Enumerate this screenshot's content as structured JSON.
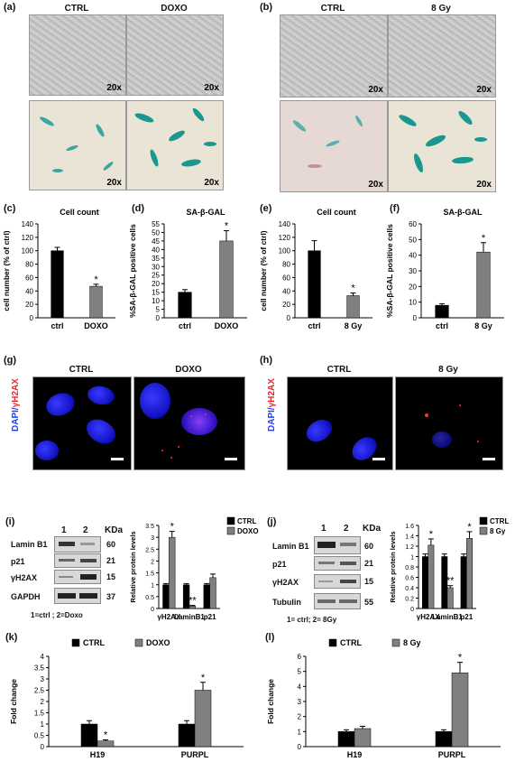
{
  "panels": {
    "a": {
      "label": "(a)",
      "ctrl": "CTRL",
      "treat": "DOXO",
      "mag": "20x"
    },
    "b": {
      "label": "(b)",
      "ctrl": "CTRL",
      "treat": "8 Gy",
      "mag": "20x"
    },
    "g": {
      "label": "(g)",
      "ctrl": "CTRL",
      "treat": "DOXO",
      "ylabel_dapi": "DAPI/",
      "ylabel_h2ax": "γH2AX"
    },
    "h": {
      "label": "(h)",
      "ctrl": "CTRL",
      "treat": "8 Gy",
      "ylabel_dapi": "DAPI/",
      "ylabel_h2ax": "γH2AX"
    },
    "i": {
      "label": "(i)",
      "lanes": [
        "1",
        "2"
      ],
      "kda_label": "KDa",
      "rows": [
        {
          "name": "Lamin B1",
          "kda": "60"
        },
        {
          "name": "p21",
          "kda": "21"
        },
        {
          "name": "γH2AX",
          "kda": "15"
        },
        {
          "name": "GAPDH",
          "kda": "37"
        }
      ],
      "legend_note": "1=ctrl ; 2=Doxo"
    },
    "j": {
      "label": "(j)",
      "lanes": [
        "1",
        "2"
      ],
      "kda_label": "KDa",
      "rows": [
        {
          "name": "Lamin B1",
          "kda": "60"
        },
        {
          "name": "p21",
          "kda": "21"
        },
        {
          "name": "γH2AX",
          "kda": "15"
        },
        {
          "name": "Tubulin",
          "kda": "55"
        }
      ],
      "legend_note": "1= ctrl;  2= 8Gy"
    }
  },
  "chart_data": [
    {
      "id": "c",
      "label": "(c)",
      "type": "bar",
      "title": "Cell count",
      "ylabel": "cell number (% of ctrl)",
      "categories": [
        "ctrl",
        "DOXO"
      ],
      "values": [
        100,
        47
      ],
      "errors": [
        5,
        3
      ],
      "ylim": [
        0,
        140
      ],
      "yticks": [
        0,
        20,
        40,
        60,
        80,
        100,
        120,
        140
      ],
      "colors": [
        "#000000",
        "#808080"
      ],
      "significance": [
        "",
        "*"
      ]
    },
    {
      "id": "d",
      "label": "(d)",
      "type": "bar",
      "title": "SA-β-GAL",
      "ylabel": "%SA-β-GAL positive cells",
      "categories": [
        "ctrl",
        "DOXO"
      ],
      "values": [
        15,
        45
      ],
      "errors": [
        1.5,
        6
      ],
      "ylim": [
        0,
        55
      ],
      "yticks": [
        0,
        5,
        10,
        15,
        20,
        25,
        30,
        35,
        40,
        45,
        50,
        55
      ],
      "colors": [
        "#000000",
        "#808080"
      ],
      "significance": [
        "",
        "*"
      ]
    },
    {
      "id": "e",
      "label": "(e)",
      "type": "bar",
      "title": "Cell count",
      "ylabel": "cell number (% of ctrl)",
      "categories": [
        "ctrl",
        "8 Gy"
      ],
      "values": [
        100,
        33
      ],
      "errors": [
        15,
        4
      ],
      "ylim": [
        0,
        140
      ],
      "yticks": [
        0,
        20,
        40,
        60,
        80,
        100,
        120,
        140
      ],
      "colors": [
        "#000000",
        "#808080"
      ],
      "significance": [
        "",
        "*"
      ]
    },
    {
      "id": "f",
      "label": "(f)",
      "type": "bar",
      "title": "SA-β-GAL",
      "ylabel": "%SA-β-GAL positive cells",
      "categories": [
        "ctrl",
        "8 Gy"
      ],
      "values": [
        8,
        42
      ],
      "errors": [
        1,
        6
      ],
      "ylim": [
        0,
        60
      ],
      "yticks": [
        0,
        10,
        20,
        30,
        40,
        50,
        60
      ],
      "colors": [
        "#000000",
        "#808080"
      ],
      "significance": [
        "",
        "*"
      ]
    },
    {
      "id": "i",
      "label": "",
      "type": "bar",
      "title": "",
      "ylabel": "Relative protein levels",
      "categories": [
        "γH2AX",
        "LaminB1",
        "p21"
      ],
      "series": [
        {
          "name": "CTRL",
          "values": [
            1,
            1,
            1
          ],
          "errors": [
            0.05,
            0.05,
            0.05
          ],
          "color": "#000000"
        },
        {
          "name": "DOXO",
          "values": [
            3,
            0.1,
            1.3
          ],
          "errors": [
            0.25,
            0.03,
            0.15
          ],
          "color": "#808080"
        }
      ],
      "ylim": [
        0,
        3.5
      ],
      "yticks": [
        0,
        0.5,
        1,
        1.5,
        2,
        2.5,
        3,
        3.5
      ],
      "significance": [
        [
          "",
          "*"
        ],
        [
          "",
          "**"
        ],
        [
          "",
          ""
        ]
      ],
      "legend": "top-right"
    },
    {
      "id": "j",
      "label": "",
      "type": "bar",
      "title": "",
      "ylabel": "Relative protein levels",
      "categories": [
        "γH2AX",
        "LaminB1",
        "p21"
      ],
      "series": [
        {
          "name": "CTRL",
          "values": [
            1,
            1,
            1
          ],
          "errors": [
            0.05,
            0.05,
            0.05
          ],
          "color": "#000000"
        },
        {
          "name": "8 Gy",
          "values": [
            1.22,
            0.4,
            1.35
          ],
          "errors": [
            0.12,
            0.04,
            0.13
          ],
          "color": "#808080"
        }
      ],
      "ylim": [
        0,
        1.6
      ],
      "yticks": [
        0,
        0.2,
        0.4,
        0.6,
        0.8,
        1,
        1.2,
        1.4,
        1.6
      ],
      "significance": [
        [
          "",
          "*"
        ],
        [
          "",
          "**"
        ],
        [
          "",
          "*"
        ]
      ],
      "legend": "top-right"
    },
    {
      "id": "k",
      "label": "(k)",
      "type": "bar",
      "title": "",
      "ylabel": "Fold change",
      "categories": [
        "H19",
        "PURPL"
      ],
      "series": [
        {
          "name": "CTRL",
          "values": [
            1,
            1
          ],
          "errors": [
            0.15,
            0.15
          ],
          "color": "#000000"
        },
        {
          "name": "DOXO",
          "values": [
            0.25,
            2.5
          ],
          "errors": [
            0.05,
            0.35
          ],
          "color": "#808080"
        }
      ],
      "ylim": [
        0,
        4
      ],
      "yticks": [
        0,
        0.5,
        1,
        1.5,
        2,
        2.5,
        3,
        3.5,
        4
      ],
      "significance": [
        [
          "",
          "*"
        ],
        [
          "",
          "*"
        ]
      ],
      "legend": "top"
    },
    {
      "id": "l",
      "label": "(l)",
      "type": "bar",
      "title": "",
      "ylabel": "Fold change",
      "categories": [
        "H19",
        "PURPL"
      ],
      "series": [
        {
          "name": "CTRL",
          "values": [
            1,
            1
          ],
          "errors": [
            0.12,
            0.12
          ],
          "color": "#000000"
        },
        {
          "name": "8 Gy",
          "values": [
            1.2,
            4.9
          ],
          "errors": [
            0.15,
            0.7
          ],
          "color": "#808080"
        }
      ],
      "ylim": [
        0,
        6
      ],
      "yticks": [
        0,
        1,
        2,
        3,
        4,
        5,
        6
      ],
      "significance": [
        [
          "",
          ""
        ],
        [
          "",
          "*"
        ]
      ],
      "legend": "top"
    }
  ]
}
